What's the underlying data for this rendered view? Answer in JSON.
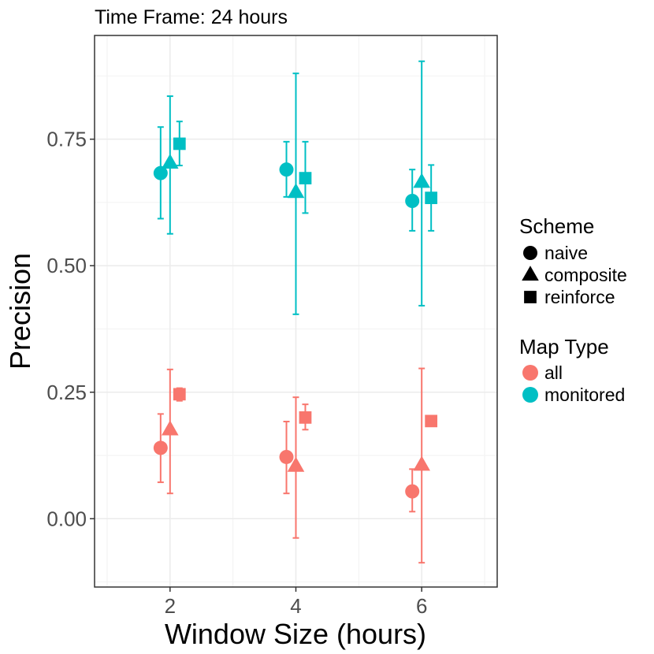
{
  "chart_data": {
    "type": "scatter",
    "title": "Time Frame: 24 hours",
    "xlabel": "Window Size (hours)",
    "ylabel": "Precision",
    "x_ticks": [
      2,
      4,
      6
    ],
    "y_ticks": [
      "0.00",
      "0.25",
      "0.50",
      "0.75"
    ],
    "xlim": [
      0.8,
      7.2
    ],
    "ylim": [
      -0.135,
      0.955
    ],
    "grid": true,
    "legend_position": "right",
    "legends": {
      "shape": {
        "title": "Scheme",
        "items": [
          {
            "label": "naive",
            "shape": "circle"
          },
          {
            "label": "composite",
            "shape": "triangle"
          },
          {
            "label": "reinforce",
            "shape": "square"
          }
        ]
      },
      "color": {
        "title": "Map Type",
        "items": [
          {
            "label": "all",
            "color": "#f8766d"
          },
          {
            "label": "monitored",
            "color": "#00bfc4"
          }
        ]
      }
    },
    "dodge": {
      "naive": -0.15,
      "composite": 0.0,
      "reinforce": 0.15
    },
    "points": [
      {
        "map": "monitored",
        "scheme": "naive",
        "x": 2,
        "y": 0.683,
        "lo": 0.593,
        "hi": 0.774
      },
      {
        "map": "monitored",
        "scheme": "composite",
        "x": 2,
        "y": 0.703,
        "lo": 0.563,
        "hi": 0.835
      },
      {
        "map": "monitored",
        "scheme": "reinforce",
        "x": 2,
        "y": 0.741,
        "lo": 0.698,
        "hi": 0.785
      },
      {
        "map": "monitored",
        "scheme": "naive",
        "x": 4,
        "y": 0.69,
        "lo": 0.636,
        "hi": 0.745
      },
      {
        "map": "monitored",
        "scheme": "composite",
        "x": 4,
        "y": 0.645,
        "lo": 0.404,
        "hi": 0.88
      },
      {
        "map": "monitored",
        "scheme": "reinforce",
        "x": 4,
        "y": 0.673,
        "lo": 0.604,
        "hi": 0.745
      },
      {
        "map": "monitored",
        "scheme": "naive",
        "x": 6,
        "y": 0.628,
        "lo": 0.569,
        "hi": 0.69
      },
      {
        "map": "monitored",
        "scheme": "composite",
        "x": 6,
        "y": 0.665,
        "lo": 0.421,
        "hi": 0.904
      },
      {
        "map": "monitored",
        "scheme": "reinforce",
        "x": 6,
        "y": 0.634,
        "lo": 0.569,
        "hi": 0.699
      },
      {
        "map": "all",
        "scheme": "naive",
        "x": 2,
        "y": 0.14,
        "lo": 0.072,
        "hi": 0.207
      },
      {
        "map": "all",
        "scheme": "composite",
        "x": 2,
        "y": 0.176,
        "lo": 0.05,
        "hi": 0.295
      },
      {
        "map": "all",
        "scheme": "reinforce",
        "x": 2,
        "y": 0.246,
        "lo": 0.233,
        "hi": 0.258
      },
      {
        "map": "all",
        "scheme": "naive",
        "x": 4,
        "y": 0.122,
        "lo": 0.05,
        "hi": 0.192
      },
      {
        "map": "all",
        "scheme": "composite",
        "x": 4,
        "y": 0.104,
        "lo": -0.038,
        "hi": 0.24
      },
      {
        "map": "all",
        "scheme": "reinforce",
        "x": 4,
        "y": 0.2,
        "lo": 0.176,
        "hi": 0.226
      },
      {
        "map": "all",
        "scheme": "naive",
        "x": 6,
        "y": 0.054,
        "lo": 0.014,
        "hi": 0.098
      },
      {
        "map": "all",
        "scheme": "composite",
        "x": 6,
        "y": 0.106,
        "lo": -0.087,
        "hi": 0.297
      },
      {
        "map": "all",
        "scheme": "reinforce",
        "x": 6,
        "y": 0.193,
        "lo": 0.185,
        "hi": 0.202
      }
    ]
  }
}
